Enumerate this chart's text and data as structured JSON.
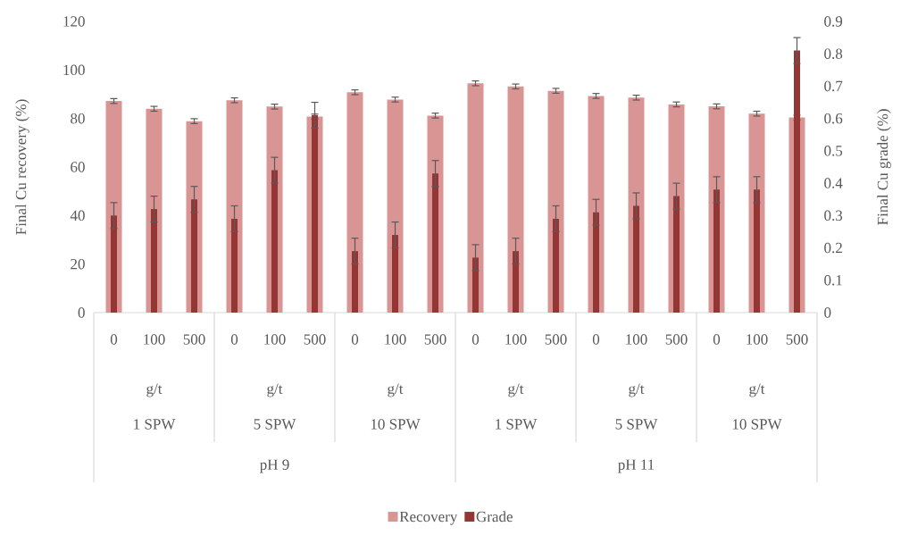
{
  "chart_data": {
    "type": "bar",
    "ylabel": "Final Cu recovery (%)",
    "y2label": "Final Cu grade (%)",
    "categories": [
      "0",
      "100",
      "500",
      "0",
      "100",
      "500",
      "0",
      "100",
      "500",
      "0",
      "100",
      "500",
      "0",
      "100",
      "500",
      "0",
      "100",
      "500"
    ],
    "series": [
      {
        "name": "Recovery",
        "color": "#d99594",
        "values": [
          87.2,
          84.0,
          78.9,
          87.5,
          84.9,
          80.8,
          90.8,
          87.8,
          81.2,
          94.5,
          93.2,
          91.4,
          89.3,
          88.6,
          85.8,
          85.0,
          82.0,
          80.4
        ],
        "errors": [
          1,
          1,
          1,
          1,
          1,
          1,
          1,
          1,
          1,
          1,
          1,
          1,
          1,
          1,
          1,
          1,
          1,
          1
        ]
      },
      {
        "name": "Grade",
        "color": "#943634",
        "axis": "y2",
        "values": [
          0.3,
          0.32,
          0.35,
          0.29,
          0.44,
          0.61,
          0.19,
          0.24,
          0.43,
          0.17,
          0.19,
          0.29,
          0.31,
          0.33,
          0.36,
          0.38,
          0.38,
          0.81
        ],
        "errors": [
          0.04,
          0.04,
          0.04,
          0.04,
          0.04,
          0.04,
          0.04,
          0.04,
          0.04,
          0.04,
          0.04,
          0.04,
          0.04,
          0.04,
          0.04,
          0.04,
          0.04,
          0.04
        ]
      }
    ],
    "ylim": [
      0,
      120
    ],
    "yticks": [
      0,
      20,
      40,
      60,
      80,
      100,
      120
    ],
    "y2lim": [
      0,
      0.9
    ],
    "y2ticks": [
      0,
      0.1,
      0.2,
      0.3,
      0.4,
      0.5,
      0.6,
      0.7,
      0.8,
      0.9
    ],
    "annotations": [
      "g/t",
      "g/t",
      "g/t",
      "g/t",
      "g/t",
      "g/t",
      "1 SPW",
      "5 SPW",
      "10 SPW",
      "1 SPW",
      "5 SPW",
      "10 SPW",
      "pH 9",
      "pH 11"
    ],
    "legend": "bottom"
  }
}
